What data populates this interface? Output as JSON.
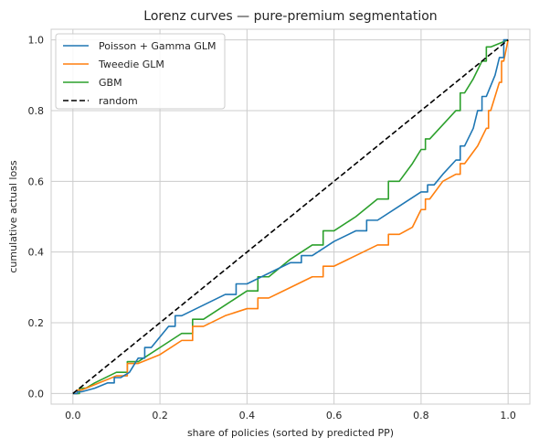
{
  "chart_data": {
    "type": "line",
    "title": "Lorenz curves — pure-premium segmentation",
    "xlabel": "share of policies (sorted by predicted PP)",
    "ylabel": "cumulative actual loss",
    "xlim": [
      -0.05,
      1.05
    ],
    "ylim": [
      -0.03,
      1.03
    ],
    "xticks": [
      "0.0",
      "0.2",
      "0.4",
      "0.6",
      "0.8",
      "1.0"
    ],
    "yticks": [
      "0.0",
      "0.2",
      "0.4",
      "0.6",
      "0.8",
      "1.0"
    ],
    "grid": true,
    "legend_position": "top-left",
    "series": [
      {
        "name": "Poisson + Gamma GLM",
        "color": "#1f77b4",
        "dash": "solid",
        "x": [
          0.0,
          0.02,
          0.05,
          0.08,
          0.11,
          0.13,
          0.15,
          0.18,
          0.2,
          0.22,
          0.25,
          0.3,
          0.35,
          0.4,
          0.45,
          0.5,
          0.55,
          0.6,
          0.65,
          0.7,
          0.75,
          0.8,
          0.83,
          0.85,
          0.88,
          0.9,
          0.92,
          0.93,
          0.95,
          0.97,
          0.98,
          1.0
        ],
        "y": [
          0.0,
          0.005,
          0.015,
          0.03,
          0.045,
          0.06,
          0.1,
          0.13,
          0.16,
          0.19,
          0.22,
          0.25,
          0.28,
          0.31,
          0.34,
          0.37,
          0.39,
          0.43,
          0.46,
          0.49,
          0.53,
          0.57,
          0.59,
          0.62,
          0.66,
          0.7,
          0.75,
          0.8,
          0.84,
          0.9,
          0.95,
          1.0
        ]
      },
      {
        "name": "Tweedie GLM",
        "color": "#ff7f0e",
        "dash": "solid",
        "x": [
          0.0,
          0.02,
          0.05,
          0.1,
          0.15,
          0.2,
          0.25,
          0.3,
          0.35,
          0.4,
          0.45,
          0.5,
          0.55,
          0.6,
          0.65,
          0.7,
          0.75,
          0.78,
          0.8,
          0.82,
          0.85,
          0.88,
          0.9,
          0.93,
          0.95,
          0.96,
          0.97,
          0.98,
          0.99,
          1.0
        ],
        "y": [
          0.0,
          0.01,
          0.025,
          0.05,
          0.085,
          0.11,
          0.15,
          0.19,
          0.22,
          0.24,
          0.27,
          0.3,
          0.33,
          0.36,
          0.39,
          0.42,
          0.45,
          0.47,
          0.52,
          0.55,
          0.6,
          0.62,
          0.65,
          0.7,
          0.75,
          0.8,
          0.84,
          0.88,
          0.94,
          1.0
        ]
      },
      {
        "name": "GBM",
        "color": "#2ca02c",
        "dash": "solid",
        "x": [
          0.0,
          0.03,
          0.05,
          0.1,
          0.15,
          0.2,
          0.25,
          0.3,
          0.35,
          0.4,
          0.45,
          0.5,
          0.55,
          0.6,
          0.65,
          0.7,
          0.75,
          0.78,
          0.8,
          0.82,
          0.85,
          0.88,
          0.9,
          0.92,
          0.94,
          0.96,
          0.98,
          1.0
        ],
        "y": [
          0.0,
          0.015,
          0.03,
          0.06,
          0.09,
          0.13,
          0.17,
          0.21,
          0.25,
          0.29,
          0.33,
          0.38,
          0.42,
          0.46,
          0.5,
          0.55,
          0.6,
          0.65,
          0.69,
          0.72,
          0.76,
          0.8,
          0.85,
          0.89,
          0.94,
          0.98,
          0.99,
          1.0
        ]
      },
      {
        "name": "random",
        "color": "#000000",
        "dash": "dashed",
        "x": [
          0.0,
          1.0
        ],
        "y": [
          0.0,
          1.0
        ]
      }
    ]
  }
}
